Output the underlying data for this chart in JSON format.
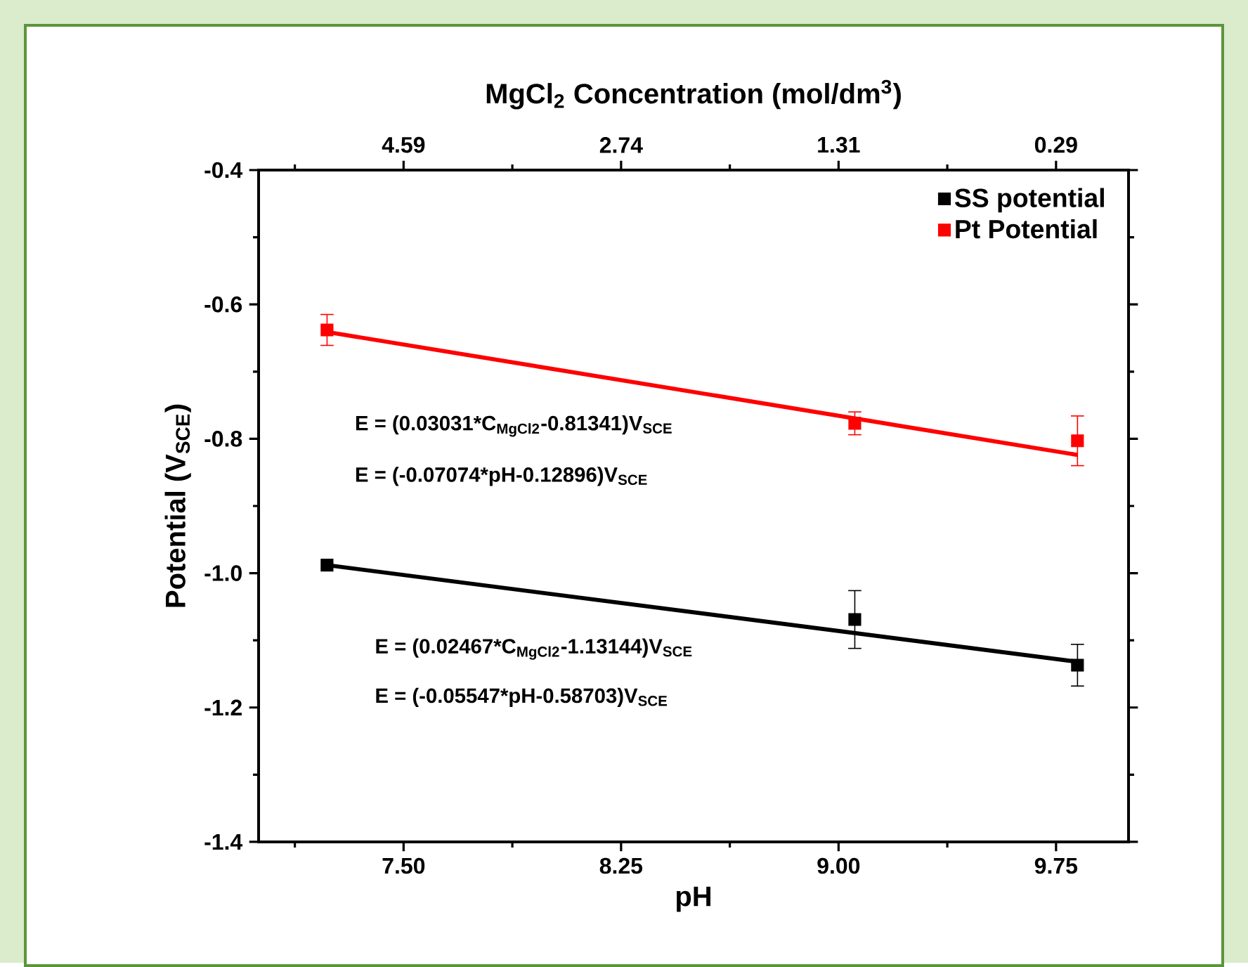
{
  "chart_data": {
    "type": "scatter",
    "xlabel": "pH",
    "ylabel": "Potential (V$_{SCE}$)",
    "x2label": "MgCl$_{2}$ Concentration (mol/dm$^{3}$)",
    "xlim": [
      7,
      10
    ],
    "xticks": [
      {
        "value": 7.125,
        "label": null
      },
      {
        "value": 7.5,
        "label": "7.50"
      },
      {
        "value": 7.875,
        "label": null
      },
      {
        "value": 8.25,
        "label": "8.25"
      },
      {
        "value": 8.625,
        "label": null
      },
      {
        "value": 9.0,
        "label": "9.00"
      },
      {
        "value": 9.375,
        "label": null
      },
      {
        "value": 9.75,
        "label": "9.75"
      }
    ],
    "ylim": [
      -1.4,
      -0.4
    ],
    "yticks": [
      {
        "value": -1.4,
        "label": "-1.4"
      },
      {
        "value": -1.3,
        "label": null
      },
      {
        "value": -1.2,
        "label": "-1.2"
      },
      {
        "value": -1.1,
        "label": null
      },
      {
        "value": -1.0,
        "label": "-1.0"
      },
      {
        "value": -0.9,
        "label": null
      },
      {
        "value": -0.8,
        "label": "-0.8"
      },
      {
        "value": -0.7,
        "label": null
      },
      {
        "value": -0.6,
        "label": "-0.6"
      },
      {
        "value": -0.5,
        "label": null
      },
      {
        "value": -0.4,
        "label": "-0.4"
      }
    ],
    "legend": "top right",
    "marker": "square",
    "series": [
      {
        "name": "SS potential",
        "color": "#000000",
        "x": [
          7.236,
          9.056,
          9.824
        ],
        "values": [
          -0.988,
          -1.069,
          -1.137
        ],
        "errors": [
          null,
          0.043,
          0.031
        ]
      },
      {
        "name": "Pt Potential",
        "color": "#ff0000",
        "x": [
          7.236,
          9.056,
          9.824
        ],
        "values": [
          -0.638,
          -0.777,
          -0.803
        ],
        "errors": [
          0.023,
          0.017,
          0.037
        ]
      },
      {
        "type": "line",
        "color": "#000000",
        "x": [
          7.236,
          9.824
        ],
        "values": [
          -0.988,
          -1.132
        ],
        "marker": "none"
      },
      {
        "type": "line",
        "color": "#ff0000",
        "x": [
          7.236,
          9.824
        ],
        "values": [
          -0.641,
          -0.824
        ],
        "marker": "none"
      }
    ],
    "annotations": [
      "4.59",
      "2.74",
      "1.31",
      "0.29",
      "E = (0.03031*C$_{MgCl2}$-0.81341)V$_{SCE}$",
      "E = (-0.07074*pH-0.12896)V$_{SCE}$",
      "E = (0.02467*C$_{MgCl2}$-1.13144)V$_{SCE}$",
      "E = (-0.05547*pH-0.58703)V$_{SCE}$"
    ]
  }
}
